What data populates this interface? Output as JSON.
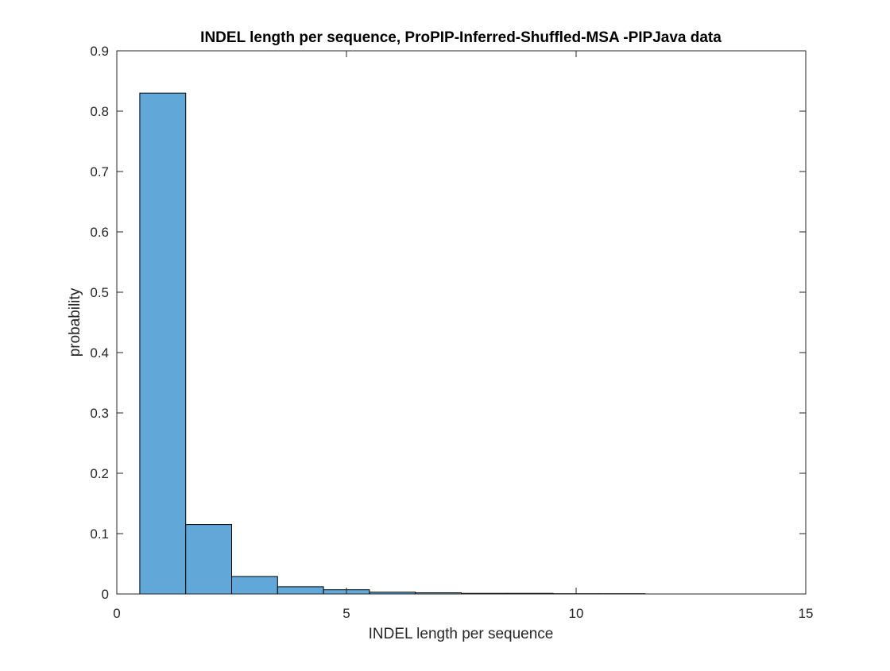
{
  "chart_data": {
    "type": "bar",
    "title": "INDEL length per sequence, ProPIP-Inferred-Shuffled-MSA -PIPJava data",
    "xlabel": "INDEL length per sequence",
    "ylabel": "probability",
    "xlim": [
      0,
      15
    ],
    "ylim": [
      0,
      0.9
    ],
    "xticks": [
      0,
      5,
      10,
      15
    ],
    "yticks": [
      0,
      0.1,
      0.2,
      0.3,
      0.4,
      0.5,
      0.6,
      0.7,
      0.8,
      0.9
    ],
    "xtick_labels": [
      "0",
      "5",
      "10",
      "15"
    ],
    "ytick_labels": [
      "0",
      "0.1",
      "0.2",
      "0.3",
      "0.4",
      "0.5",
      "0.6",
      "0.7",
      "0.8",
      "0.9"
    ],
    "bin_edges": [
      0.5,
      1.5,
      2.5,
      3.5,
      4.5,
      5.5,
      6.5,
      7.5,
      8.5,
      9.5,
      10.5,
      11.5
    ],
    "values": [
      0.83,
      0.115,
      0.029,
      0.012,
      0.007,
      0.003,
      0.002,
      0.001,
      0.001,
      0.0005,
      0.0005
    ],
    "bar_color": "#61a7d7",
    "edge_color": "#000000",
    "grid": false,
    "box": true
  }
}
